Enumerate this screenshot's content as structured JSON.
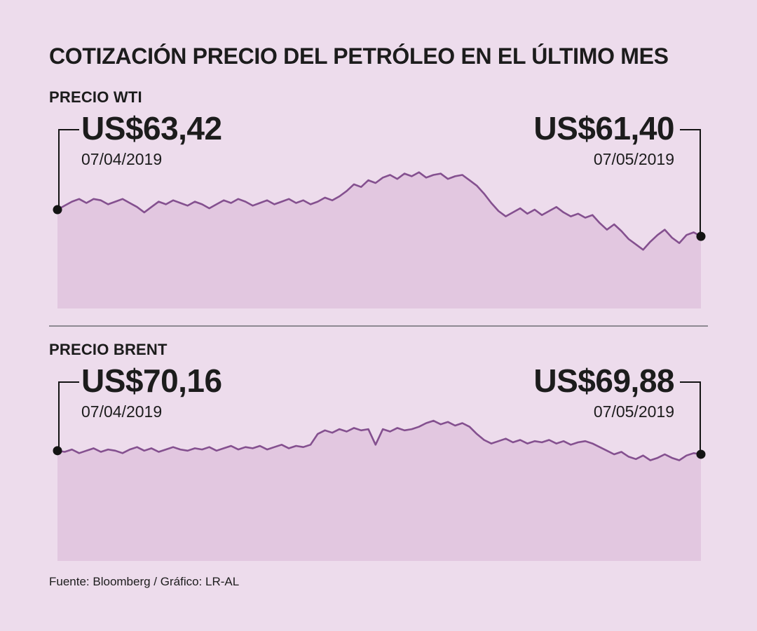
{
  "page": {
    "title": "COTIZACIÓN PRECIO DEL PETRÓLEO EN EL ÚLTIMO MES",
    "source": "Fuente: Bloomberg / Gráfico: LR-AL"
  },
  "colors": {
    "background": "#eddcec",
    "area_fill": "#e2c7e0",
    "line": "#84508f",
    "marker": "#141414",
    "text": "#1c1c1c",
    "divider": "#8e8a92"
  },
  "chart_data": [
    {
      "type": "area",
      "title": "PRECIO WTI",
      "start": {
        "label": "US$63,42",
        "date": "07/04/2019"
      },
      "end": {
        "label": "US$61,40",
        "date": "07/05/2019"
      },
      "ylim": [
        56,
        66.5
      ],
      "grid": false,
      "legend": "none",
      "values": [
        63.4,
        63.7,
        64.0,
        64.2,
        63.9,
        64.2,
        64.1,
        63.8,
        64.0,
        64.2,
        63.9,
        63.6,
        63.2,
        63.6,
        64.0,
        63.8,
        64.1,
        63.9,
        63.7,
        64.0,
        63.8,
        63.5,
        63.8,
        64.1,
        63.9,
        64.2,
        64.0,
        63.7,
        63.9,
        64.1,
        63.8,
        64.0,
        64.2,
        63.9,
        64.1,
        63.8,
        64.0,
        64.3,
        64.1,
        64.4,
        64.8,
        65.3,
        65.1,
        65.6,
        65.4,
        65.8,
        66.0,
        65.7,
        66.1,
        65.9,
        66.2,
        65.8,
        66.0,
        66.1,
        65.7,
        65.9,
        66.0,
        65.6,
        65.2,
        64.6,
        63.9,
        63.3,
        62.9,
        63.2,
        63.5,
        63.1,
        63.4,
        63.0,
        63.3,
        63.6,
        63.2,
        62.9,
        63.1,
        62.8,
        63.0,
        62.4,
        61.9,
        62.3,
        61.8,
        61.2,
        60.8,
        60.4,
        61.0,
        61.5,
        61.9,
        61.3,
        60.9,
        61.5,
        61.7,
        61.4
      ]
    },
    {
      "type": "area",
      "title": "PRECIO BRENT",
      "start": {
        "label": "US$70,16",
        "date": "07/04/2019"
      },
      "end": {
        "label": "US$69,88",
        "date": "07/05/2019"
      },
      "ylim": [
        61,
        73
      ],
      "grid": false,
      "legend": "none",
      "values": [
        70.2,
        70.1,
        70.3,
        70.0,
        70.2,
        70.4,
        70.1,
        70.3,
        70.2,
        70.0,
        70.3,
        70.5,
        70.2,
        70.4,
        70.1,
        70.3,
        70.5,
        70.3,
        70.2,
        70.4,
        70.3,
        70.5,
        70.2,
        70.4,
        70.6,
        70.3,
        70.5,
        70.4,
        70.6,
        70.3,
        70.5,
        70.7,
        70.4,
        70.6,
        70.5,
        70.7,
        71.6,
        71.9,
        71.7,
        72.0,
        71.8,
        72.1,
        71.9,
        72.0,
        70.7,
        72.0,
        71.8,
        72.1,
        71.9,
        72.0,
        72.2,
        72.5,
        72.7,
        72.4,
        72.6,
        72.3,
        72.5,
        72.2,
        71.6,
        71.1,
        70.8,
        71.0,
        71.2,
        70.9,
        71.1,
        70.8,
        71.0,
        70.9,
        71.1,
        70.8,
        71.0,
        70.7,
        70.9,
        71.0,
        70.8,
        70.5,
        70.2,
        69.9,
        70.1,
        69.7,
        69.5,
        69.8,
        69.4,
        69.6,
        69.9,
        69.6,
        69.4,
        69.8,
        70.0,
        69.9
      ]
    }
  ]
}
